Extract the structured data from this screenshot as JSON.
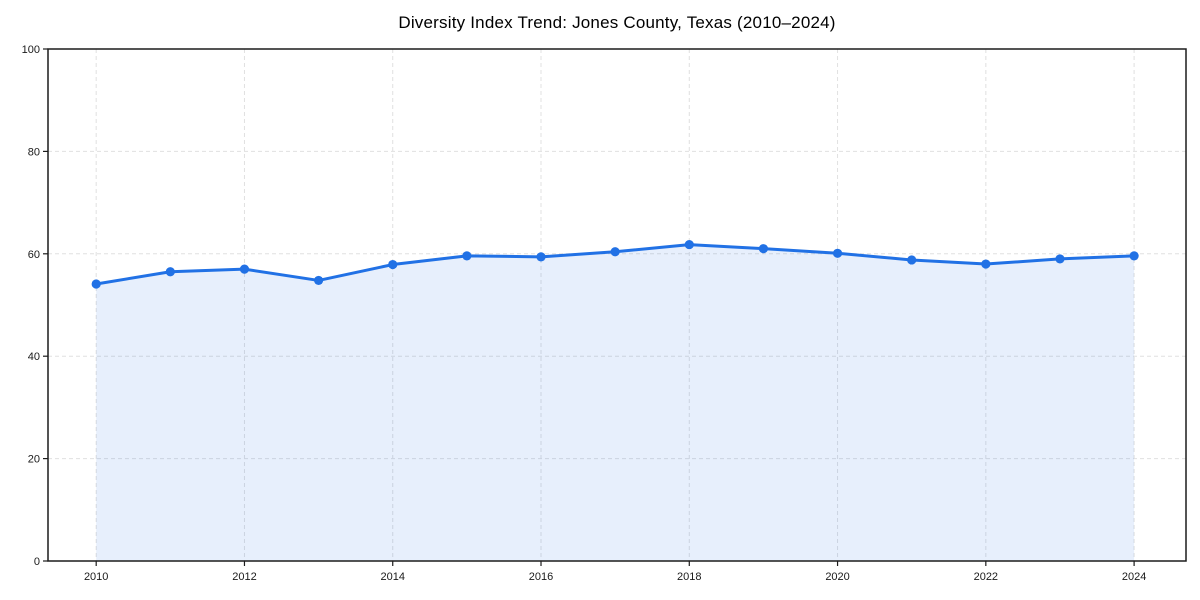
{
  "chart_data": {
    "type": "line",
    "title": "Diversity Index Trend: Jones County, Texas (2010–2024)",
    "xlabel": "",
    "ylabel": "",
    "x": [
      2010,
      2011,
      2012,
      2013,
      2014,
      2015,
      2016,
      2017,
      2018,
      2019,
      2020,
      2021,
      2022,
      2023,
      2024
    ],
    "values": [
      54.1,
      56.5,
      57.0,
      54.8,
      57.9,
      59.6,
      59.4,
      60.4,
      61.8,
      61.0,
      60.1,
      58.8,
      58.0,
      59.0,
      59.6
    ],
    "xlim": [
      2009.35,
      2024.7
    ],
    "ylim": [
      0,
      100
    ],
    "xticks": [
      2010,
      2012,
      2014,
      2016,
      2018,
      2020,
      2022,
      2024
    ],
    "yticks": [
      0,
      20,
      40,
      60,
      80,
      100
    ],
    "grid": true,
    "grid_style": "dashed",
    "legend": false,
    "area_fill": true,
    "colors": {
      "line": "#2171e5",
      "marker": "#2171e5",
      "fill_opacity": 0.11,
      "grid": "#e0e0e0",
      "spine": "#1c1c1c",
      "tick_text": "#1a1a1a",
      "background": "#ffffff"
    }
  }
}
